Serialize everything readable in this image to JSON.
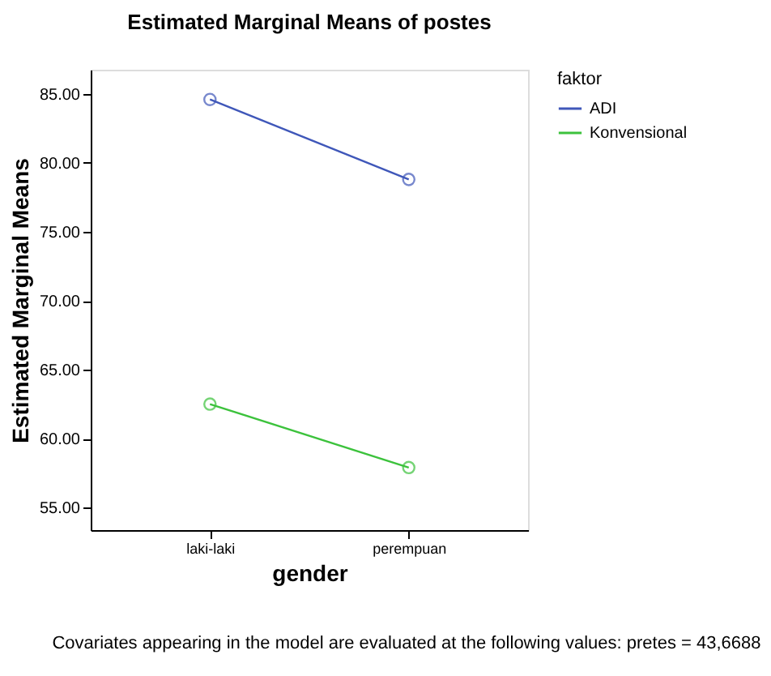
{
  "chart_data": {
    "type": "line",
    "title": "Estimated Marginal Means of postes",
    "xlabel": "gender",
    "ylabel": "Estimated Marginal Means",
    "legend_title": "faktor",
    "categories": [
      "laki-laki",
      "perempuan"
    ],
    "series": [
      {
        "name": "ADI",
        "color": "#3f57b9",
        "values": [
          84.6,
          78.8
        ]
      },
      {
        "name": "Konvensional",
        "color": "#3cc23c",
        "values": [
          62.5,
          57.9
        ]
      }
    ],
    "ylim": [
      53.36,
      86.76
    ],
    "yticks": [
      {
        "value": 55,
        "label": "55.00"
      },
      {
        "value": 60,
        "label": "60.00"
      },
      {
        "value": 65,
        "label": "65.00"
      },
      {
        "value": 70,
        "label": "70.00"
      },
      {
        "value": 75,
        "label": "75.00"
      },
      {
        "value": 80,
        "label": "80.00"
      },
      {
        "value": 85,
        "label": "85.00"
      }
    ],
    "grid": false,
    "legend": "top right",
    "marker": "circle",
    "line_style": "solid",
    "annotations": [
      "Covariates appearing in the model are evaluated at the following values: pretes = 43,6688"
    ]
  }
}
